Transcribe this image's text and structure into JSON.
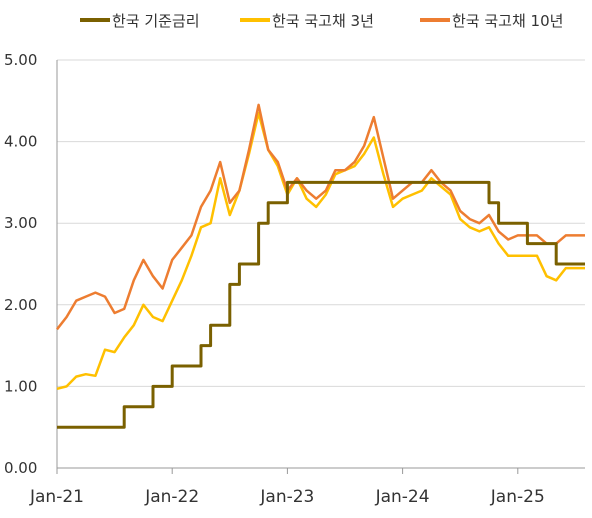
{
  "chart_data": {
    "type": "line",
    "title": "",
    "xlabel": "",
    "ylabel": "",
    "ylim": [
      0,
      5
    ],
    "yticks": [
      "0.00",
      "1.00",
      "2.00",
      "3.00",
      "4.00",
      "5.00"
    ],
    "xticks": [
      "Jan-21",
      "Jan-22",
      "Jan-23",
      "Jan-24",
      "Jan-25"
    ],
    "xlim": [
      "2021-01",
      "2025-08"
    ],
    "grid": "horizontal",
    "legend_position": "top",
    "series": [
      {
        "name": "한국 기준금리",
        "color": "#7a6000",
        "step": true,
        "x": [
          "2021-01",
          "2021-08",
          "2021-11",
          "2022-01",
          "2022-04",
          "2022-05",
          "2022-07",
          "2022-08",
          "2022-10",
          "2022-11",
          "2023-01",
          "2024-10",
          "2024-11",
          "2025-02",
          "2025-05",
          "2025-08"
        ],
        "values": [
          0.5,
          0.75,
          1.0,
          1.25,
          1.5,
          1.75,
          2.25,
          2.5,
          3.0,
          3.25,
          3.5,
          3.25,
          3.0,
          2.75,
          2.5,
          2.5
        ]
      },
      {
        "name": "한국 국고채 3년",
        "color": "#ffc000",
        "x": [
          "2021-01",
          "2021-02",
          "2021-03",
          "2021-04",
          "2021-05",
          "2021-06",
          "2021-07",
          "2021-08",
          "2021-09",
          "2021-10",
          "2021-11",
          "2021-12",
          "2022-01",
          "2022-02",
          "2022-03",
          "2022-04",
          "2022-05",
          "2022-06",
          "2022-07",
          "2022-08",
          "2022-09",
          "2022-10",
          "2022-11",
          "2022-12",
          "2023-01",
          "2023-02",
          "2023-03",
          "2023-04",
          "2023-05",
          "2023-06",
          "2023-07",
          "2023-08",
          "2023-09",
          "2023-10",
          "2023-11",
          "2023-12",
          "2024-01",
          "2024-02",
          "2024-03",
          "2024-04",
          "2024-05",
          "2024-06",
          "2024-07",
          "2024-08",
          "2024-09",
          "2024-10",
          "2024-11",
          "2024-12",
          "2025-01",
          "2025-02",
          "2025-03",
          "2025-04",
          "2025-05",
          "2025-06",
          "2025-07",
          "2025-08"
        ],
        "values": [
          0.97,
          1.0,
          1.12,
          1.15,
          1.13,
          1.45,
          1.42,
          1.6,
          1.75,
          2.0,
          1.85,
          1.8,
          2.05,
          2.3,
          2.6,
          2.95,
          3.0,
          3.55,
          3.1,
          3.4,
          3.85,
          4.35,
          3.9,
          3.7,
          3.35,
          3.55,
          3.3,
          3.2,
          3.35,
          3.6,
          3.65,
          3.7,
          3.85,
          4.05,
          3.6,
          3.2,
          3.3,
          3.35,
          3.4,
          3.55,
          3.45,
          3.35,
          3.05,
          2.95,
          2.9,
          2.95,
          2.75,
          2.6,
          2.6,
          2.6,
          2.6,
          2.35,
          2.3,
          2.45,
          2.45,
          2.45
        ]
      },
      {
        "name": "한국 국고채 10년",
        "color": "#ed7d31",
        "x": [
          "2021-01",
          "2021-02",
          "2021-03",
          "2021-04",
          "2021-05",
          "2021-06",
          "2021-07",
          "2021-08",
          "2021-09",
          "2021-10",
          "2021-11",
          "2021-12",
          "2022-01",
          "2022-02",
          "2022-03",
          "2022-04",
          "2022-05",
          "2022-06",
          "2022-07",
          "2022-08",
          "2022-09",
          "2022-10",
          "2022-11",
          "2022-12",
          "2023-01",
          "2023-02",
          "2023-03",
          "2023-04",
          "2023-05",
          "2023-06",
          "2023-07",
          "2023-08",
          "2023-09",
          "2023-10",
          "2023-11",
          "2023-12",
          "2024-01",
          "2024-02",
          "2024-03",
          "2024-04",
          "2024-05",
          "2024-06",
          "2024-07",
          "2024-08",
          "2024-09",
          "2024-10",
          "2024-11",
          "2024-12",
          "2025-01",
          "2025-02",
          "2025-03",
          "2025-04",
          "2025-05",
          "2025-06",
          "2025-07",
          "2025-08"
        ],
        "values": [
          1.7,
          1.85,
          2.05,
          2.1,
          2.15,
          2.1,
          1.9,
          1.95,
          2.3,
          2.55,
          2.35,
          2.2,
          2.55,
          2.7,
          2.85,
          3.2,
          3.4,
          3.75,
          3.25,
          3.4,
          3.9,
          4.45,
          3.9,
          3.75,
          3.4,
          3.55,
          3.4,
          3.3,
          3.4,
          3.65,
          3.65,
          3.75,
          3.95,
          4.3,
          3.8,
          3.3,
          3.4,
          3.5,
          3.5,
          3.65,
          3.5,
          3.4,
          3.15,
          3.05,
          3.0,
          3.1,
          2.9,
          2.8,
          2.85,
          2.85,
          2.85,
          2.75,
          2.75,
          2.85,
          2.85,
          2.85
        ]
      }
    ]
  }
}
